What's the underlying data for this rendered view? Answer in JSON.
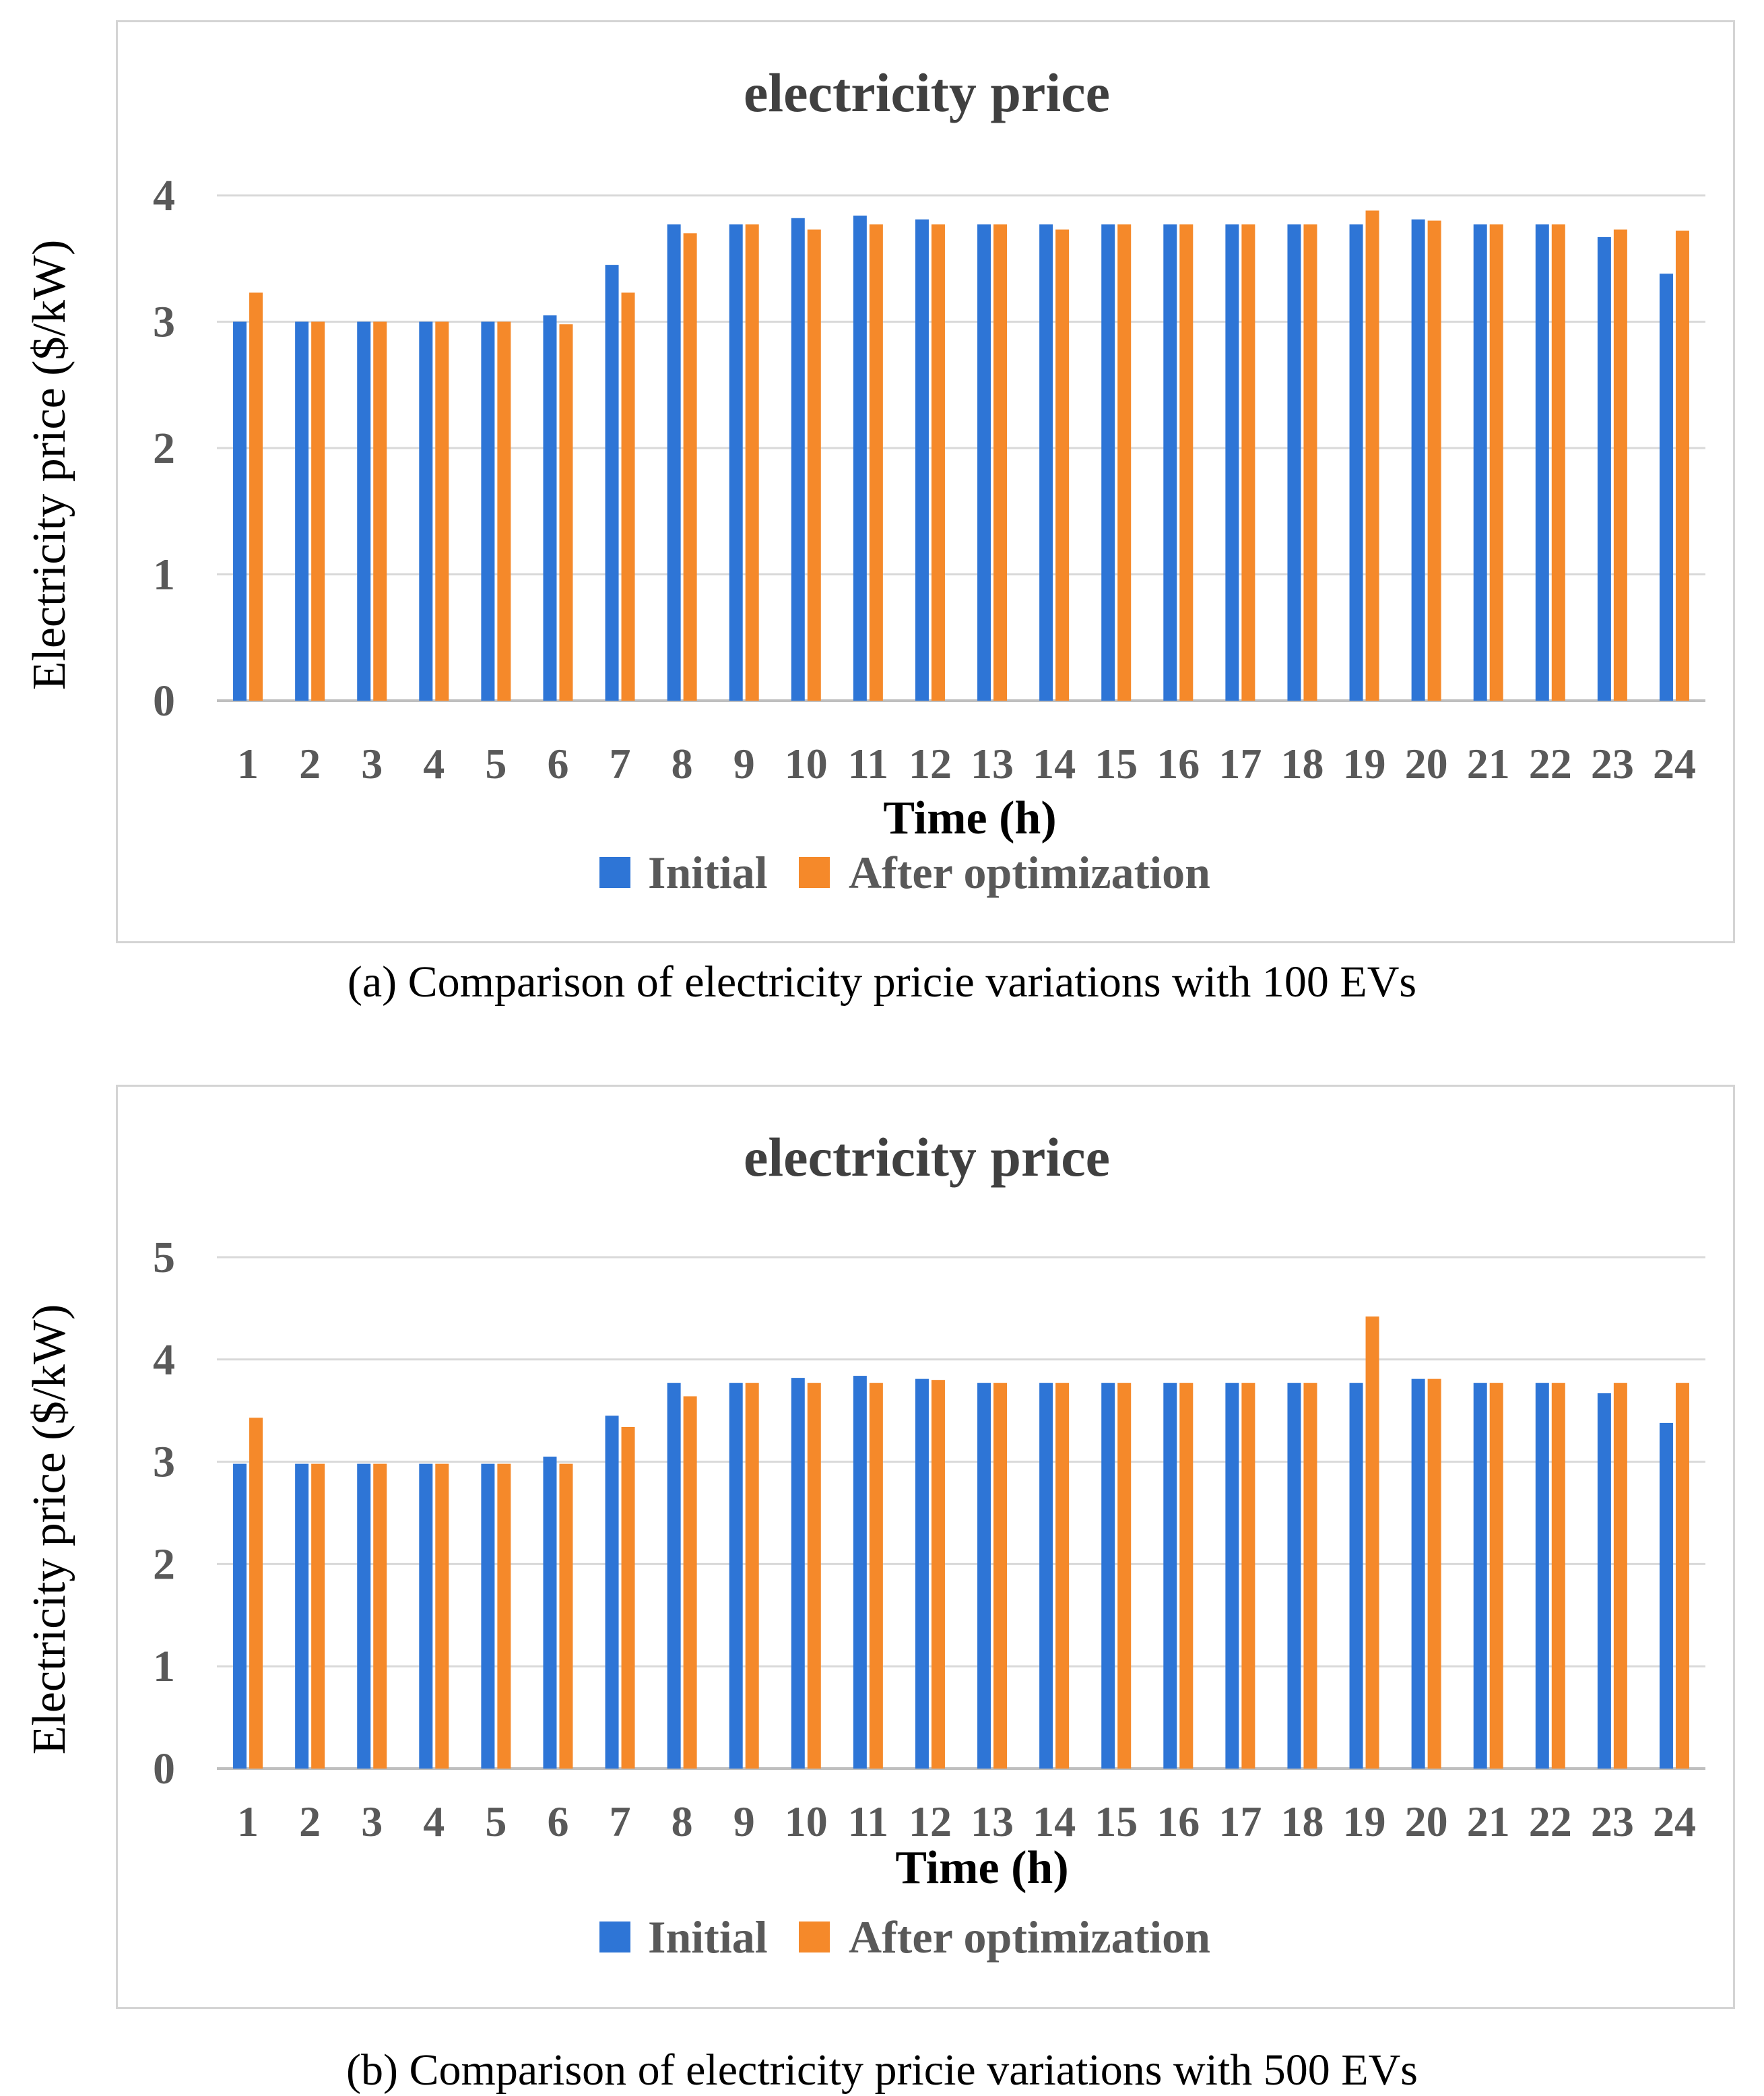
{
  "colors": {
    "initial": "#2E75D6",
    "after": "#F5892A",
    "grid": "#d9d9d9"
  },
  "chart_data": [
    {
      "type": "bar",
      "title": "electricity price",
      "xlabel": "Time (h)",
      "ylabel": "Electricity price ($/kW)",
      "ylim": [
        0,
        4
      ],
      "yticks": [
        "0",
        "1",
        "2",
        "3",
        "4"
      ],
      "categories": [
        "1",
        "2",
        "3",
        "4",
        "5",
        "6",
        "7",
        "8",
        "9",
        "10",
        "11",
        "12",
        "13",
        "14",
        "15",
        "16",
        "17",
        "18",
        "19",
        "20",
        "21",
        "22",
        "23",
        "24"
      ],
      "legend": [
        "Initial",
        "After optimization"
      ],
      "series": [
        {
          "name": "Initial",
          "values": [
            3.0,
            3.0,
            3.0,
            3.0,
            3.0,
            3.05,
            3.45,
            3.77,
            3.77,
            3.82,
            3.84,
            3.81,
            3.77,
            3.77,
            3.77,
            3.77,
            3.77,
            3.77,
            3.77,
            3.81,
            3.77,
            3.77,
            3.67,
            3.38
          ]
        },
        {
          "name": "After optimization",
          "values": [
            3.23,
            3.0,
            3.0,
            3.0,
            3.0,
            2.98,
            3.23,
            3.7,
            3.77,
            3.73,
            3.77,
            3.77,
            3.77,
            3.73,
            3.77,
            3.77,
            3.77,
            3.77,
            3.88,
            3.8,
            3.77,
            3.77,
            3.73,
            3.72
          ]
        }
      ],
      "caption": "(a) Comparison of electricity pricie variations with 100 EVs"
    },
    {
      "type": "bar",
      "title": "electricity price",
      "xlabel": "Time (h)",
      "ylabel": "Electricity price ($/kW)",
      "ylim": [
        0,
        5
      ],
      "yticks": [
        "0",
        "1",
        "2",
        "3",
        "4",
        "5"
      ],
      "categories": [
        "1",
        "2",
        "3",
        "4",
        "5",
        "6",
        "7",
        "8",
        "9",
        "10",
        "11",
        "12",
        "13",
        "14",
        "15",
        "16",
        "17",
        "18",
        "19",
        "20",
        "21",
        "22",
        "23",
        "24"
      ],
      "legend": [
        "Initial",
        "After optimization"
      ],
      "series": [
        {
          "name": "Initial",
          "values": [
            2.98,
            2.98,
            2.98,
            2.98,
            2.98,
            3.05,
            3.45,
            3.77,
            3.77,
            3.82,
            3.84,
            3.81,
            3.77,
            3.77,
            3.77,
            3.77,
            3.77,
            3.77,
            3.77,
            3.81,
            3.77,
            3.77,
            3.67,
            3.38
          ]
        },
        {
          "name": "After optimization",
          "values": [
            3.43,
            2.98,
            2.98,
            2.98,
            2.98,
            2.98,
            3.34,
            3.64,
            3.77,
            3.77,
            3.77,
            3.8,
            3.77,
            3.77,
            3.77,
            3.77,
            3.77,
            3.77,
            4.42,
            3.81,
            3.77,
            3.77,
            3.77,
            3.77
          ]
        }
      ],
      "caption": "(b) Comparison of electricity pricie variations with 500 EVs"
    }
  ]
}
